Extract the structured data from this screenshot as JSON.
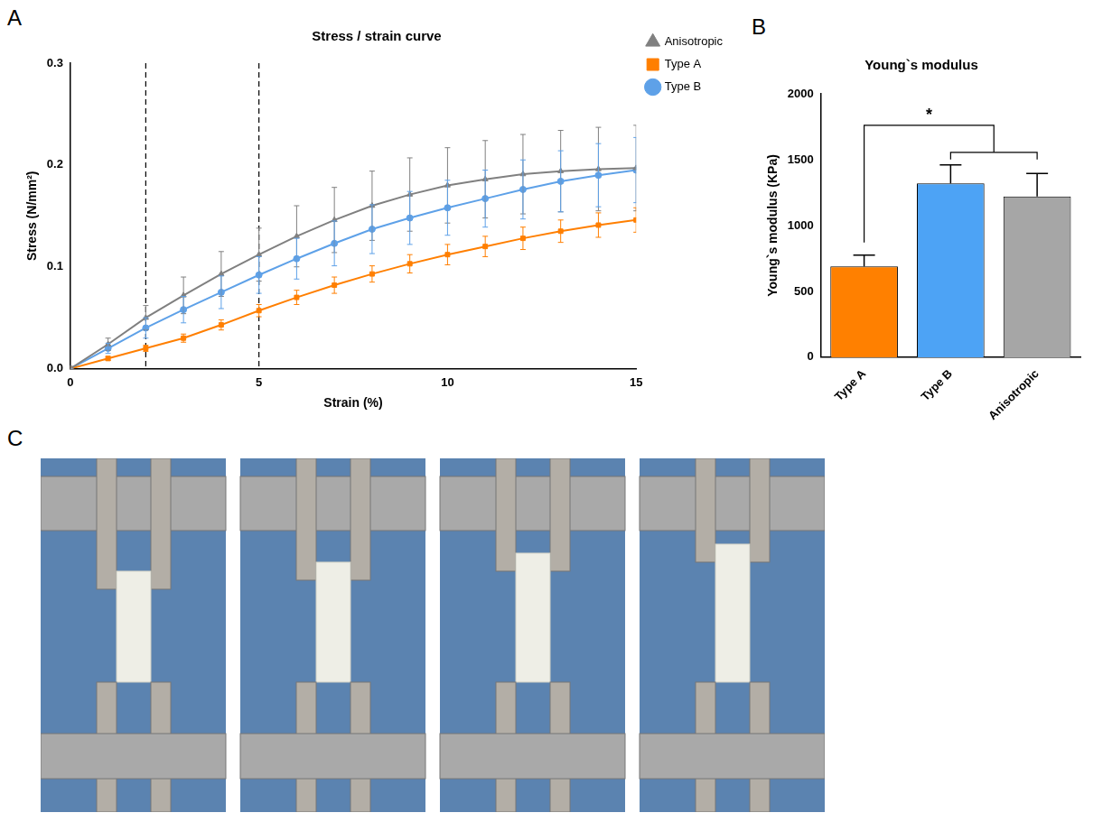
{
  "chart_data": [
    {
      "panel": "A",
      "type": "line",
      "title": "Stress / strain curve",
      "x_label": "Strain (%)",
      "y_label": "Stress (N/mm²)",
      "xlim": [
        0,
        15
      ],
      "xticks": [
        0,
        5,
        10,
        15
      ],
      "ylim": [
        0,
        0.3
      ],
      "yticks": [
        {
          "value": 0,
          "label": "0.0"
        },
        0.1,
        0.2,
        0.3
      ],
      "grid": false,
      "legend": "right",
      "x": [
        0,
        1,
        2,
        3,
        4,
        5,
        6,
        7,
        8,
        9,
        10,
        11,
        12,
        13,
        14,
        15
      ],
      "series": [
        {
          "name": "Anisotropic",
          "color": "#808080",
          "marker": "triangle",
          "values": [
            0,
            0.024,
            0.05,
            0.072,
            0.093,
            0.112,
            0.13,
            0.146,
            0.16,
            0.171,
            0.18,
            0.186,
            0.191,
            0.194,
            0.196,
            0.197
          ],
          "errors": [
            0,
            0.006,
            0.012,
            0.018,
            0.022,
            0.026,
            0.03,
            0.032,
            0.034,
            0.036,
            0.037,
            0.038,
            0.039,
            0.04,
            0.041,
            0.042
          ]
        },
        {
          "name": "Type A",
          "color": "#ff7f00",
          "marker": "square",
          "values": [
            0,
            0.01,
            0.02,
            0.03,
            0.043,
            0.057,
            0.07,
            0.082,
            0.093,
            0.103,
            0.112,
            0.12,
            0.128,
            0.135,
            0.141,
            0.146
          ],
          "errors": [
            0,
            0.002,
            0.003,
            0.004,
            0.005,
            0.006,
            0.007,
            0.008,
            0.008,
            0.009,
            0.01,
            0.01,
            0.011,
            0.011,
            0.012,
            0.012
          ]
        },
        {
          "name": "Type B",
          "color": "#5ea1e8",
          "marker": "circle",
          "values": [
            0,
            0.02,
            0.04,
            0.058,
            0.075,
            0.092,
            0.108,
            0.123,
            0.137,
            0.148,
            0.158,
            0.167,
            0.176,
            0.184,
            0.19,
            0.195
          ],
          "errors": [
            0,
            0.005,
            0.01,
            0.013,
            0.016,
            0.018,
            0.02,
            0.022,
            0.024,
            0.026,
            0.027,
            0.028,
            0.029,
            0.03,
            0.031,
            0.032
          ]
        }
      ],
      "reference_lines": {
        "x": [
          2,
          5
        ],
        "line_style": "dashed"
      }
    },
    {
      "panel": "B",
      "type": "bar",
      "title": "Young`s modulus",
      "y_label": "Young`s modulus (KPa)",
      "categories": [
        "Type A",
        "Type B",
        "Anisotropic"
      ],
      "values": [
        690,
        1320,
        1220
      ],
      "errors": [
        85,
        140,
        175
      ],
      "colors": [
        "#ff8000",
        "#4da3f5",
        "#a6a6a6"
      ],
      "ylim": [
        0,
        2000
      ],
      "yticks": [
        0,
        500,
        1000,
        1500,
        2000
      ],
      "grid": false,
      "annotations": [
        {
          "text": "*",
          "from": "Type A",
          "to": [
            "Type B",
            "Anisotropic"
          ]
        }
      ]
    }
  ],
  "photos": {
    "panel": "C",
    "count": 4
  }
}
